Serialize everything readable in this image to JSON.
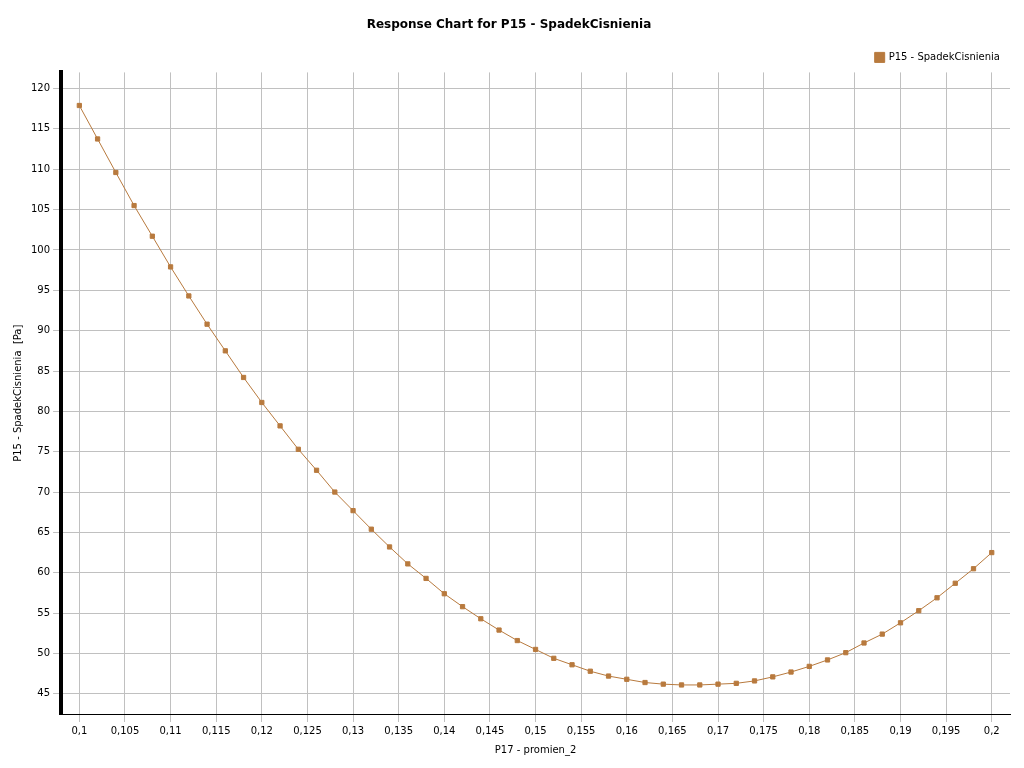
{
  "chart_data": {
    "type": "line",
    "title": "Response Chart for P15 - SpadekCisnienia",
    "xlabel": "P17 - promien_2",
    "ylabel": "P15 - SpadekCisnienia  [Pa]",
    "x": [
      0.1,
      0.102,
      0.104,
      0.106,
      0.108,
      0.11,
      0.112,
      0.114,
      0.116,
      0.118,
      0.12,
      0.122,
      0.124,
      0.126,
      0.128,
      0.13,
      0.132,
      0.134,
      0.136,
      0.138,
      0.14,
      0.142,
      0.144,
      0.146,
      0.148,
      0.15,
      0.152,
      0.154,
      0.156,
      0.158,
      0.16,
      0.162,
      0.164,
      0.166,
      0.168,
      0.17,
      0.172,
      0.174,
      0.176,
      0.178,
      0.18,
      0.182,
      0.184,
      0.186,
      0.188,
      0.19,
      0.192,
      0.194,
      0.196,
      0.198,
      0.2
    ],
    "series": [
      {
        "name": "P15 - SpadekCisnienia",
        "color": "#b87a3e",
        "values": [
          117.9,
          113.75,
          109.6,
          105.5,
          101.7,
          97.9,
          94.3,
          90.8,
          87.5,
          84.2,
          81.1,
          78.2,
          75.3,
          72.7,
          70.0,
          67.7,
          65.4,
          63.2,
          61.1,
          59.3,
          57.4,
          55.8,
          54.3,
          52.9,
          51.6,
          50.5,
          49.4,
          48.6,
          47.8,
          47.2,
          46.8,
          46.4,
          46.2,
          46.1,
          46.1,
          46.2,
          46.3,
          46.6,
          47.1,
          47.7,
          48.4,
          49.2,
          50.1,
          51.3,
          52.4,
          53.8,
          55.3,
          56.9,
          58.7,
          60.5,
          62.5
        ]
      }
    ],
    "xlim": [
      0.098,
      0.202
    ],
    "xticks": [
      {
        "value": 0.1,
        "label": "0,1"
      },
      {
        "value": 0.105,
        "label": "0,105"
      },
      {
        "value": 0.11,
        "label": "0,11"
      },
      {
        "value": 0.115,
        "label": "0,115"
      },
      {
        "value": 0.12,
        "label": "0,12"
      },
      {
        "value": 0.125,
        "label": "0,125"
      },
      {
        "value": 0.13,
        "label": "0,13"
      },
      {
        "value": 0.135,
        "label": "0,135"
      },
      {
        "value": 0.14,
        "label": "0,14"
      },
      {
        "value": 0.145,
        "label": "0,145"
      },
      {
        "value": 0.15,
        "label": "0,15"
      },
      {
        "value": 0.155,
        "label": "0,155"
      },
      {
        "value": 0.16,
        "label": "0,16"
      },
      {
        "value": 0.165,
        "label": "0,165"
      },
      {
        "value": 0.17,
        "label": "0,17"
      },
      {
        "value": 0.175,
        "label": "0,175"
      },
      {
        "value": 0.18,
        "label": "0,18"
      },
      {
        "value": 0.185,
        "label": "0,185"
      },
      {
        "value": 0.19,
        "label": "0,19"
      },
      {
        "value": 0.195,
        "label": "0,195"
      },
      {
        "value": 0.2,
        "label": "0,2"
      }
    ],
    "ylim": [
      42.5,
      122
    ],
    "yticks": [
      45,
      50,
      55,
      60,
      65,
      70,
      75,
      80,
      85,
      90,
      95,
      100,
      105,
      110,
      115,
      120
    ],
    "grid": true,
    "legend": "top right",
    "marker": "square",
    "line_style": "solid"
  }
}
